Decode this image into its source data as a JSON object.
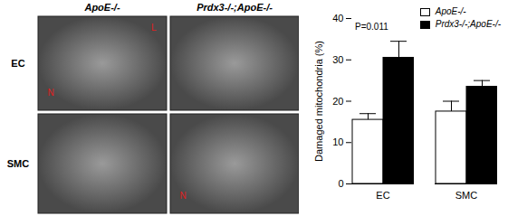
{
  "chart_data": {
    "type": "bar",
    "ylabel": "Damaged mitochondria (%)",
    "categories": [
      "EC",
      "SMC"
    ],
    "series": [
      {
        "name": "ApoE-/-",
        "color": "#ffffff",
        "values": [
          15.5,
          17.5
        ],
        "errors": [
          1.5,
          2.5
        ]
      },
      {
        "name": "Prdx3-/-;ApoE-/-",
        "color": "#000000",
        "values": [
          30.5,
          23.5
        ],
        "errors": [
          4,
          1.5
        ]
      }
    ],
    "ylim": [
      0,
      40
    ],
    "yticks": [
      0,
      10,
      20,
      30,
      40
    ],
    "legend": "top-right",
    "annotations": [
      "P=0.011"
    ]
  },
  "micrographs": {
    "columns": [
      "ApoE-/-",
      "Prdx3-/-;ApoE-/-"
    ],
    "rows": [
      "EC",
      "SMC"
    ],
    "labels": [
      {
        "row": "EC",
        "column": "ApoE-/-",
        "texts": [
          "N",
          "L"
        ]
      },
      {
        "row": "SMC",
        "column": "Prdx3-/-;ApoE-/-",
        "texts": [
          "N"
        ]
      }
    ]
  }
}
